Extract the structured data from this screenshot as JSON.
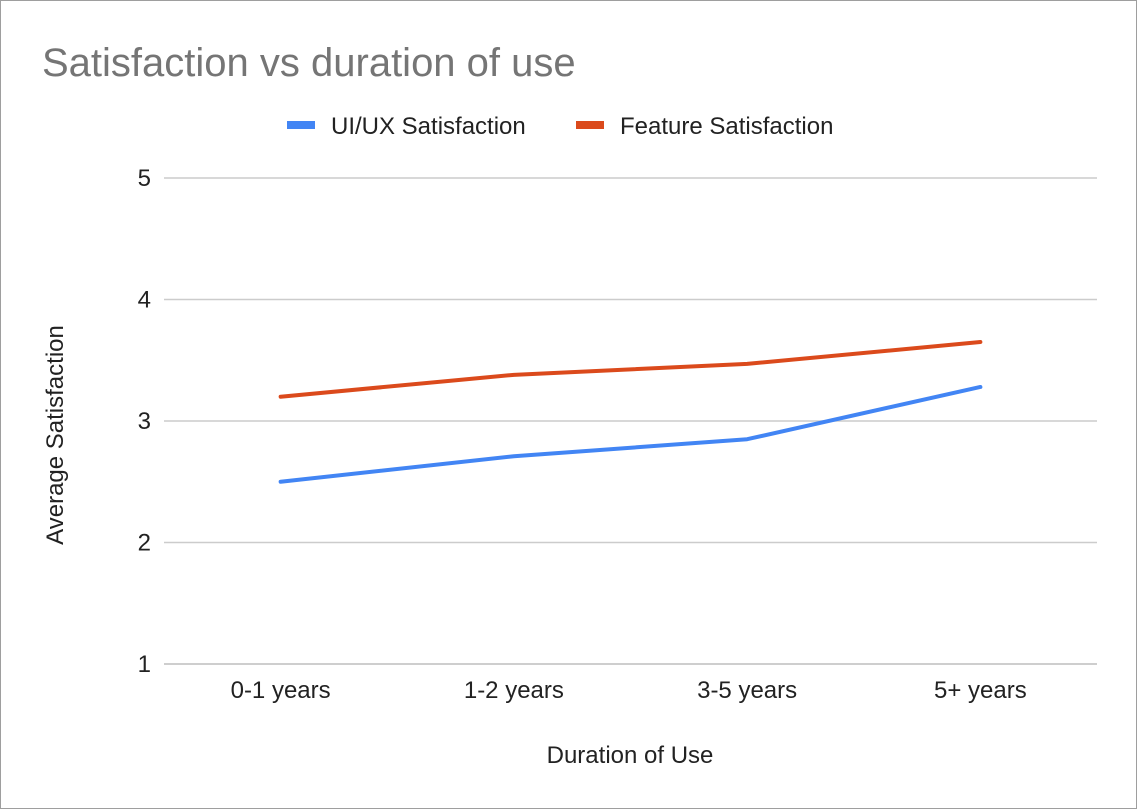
{
  "chart_data": {
    "type": "line",
    "title": "Satisfaction vs duration of use",
    "xlabel": "Duration of Use",
    "ylabel": "Average Satisfaction",
    "categories": [
      "0-1 years",
      "1-2 years",
      "3-5 years",
      "5+ years"
    ],
    "ylim": [
      1,
      5
    ],
    "yticks": [
      1,
      2,
      3,
      4,
      5
    ],
    "grid": true,
    "legend_position": "top",
    "series": [
      {
        "name": "UI/UX Satisfaction",
        "color": "#4285f4",
        "values": [
          2.5,
          2.71,
          2.85,
          3.28
        ]
      },
      {
        "name": "Feature Satisfaction",
        "color": "#db4a1c",
        "values": [
          3.2,
          3.38,
          3.47,
          3.65
        ]
      }
    ]
  }
}
